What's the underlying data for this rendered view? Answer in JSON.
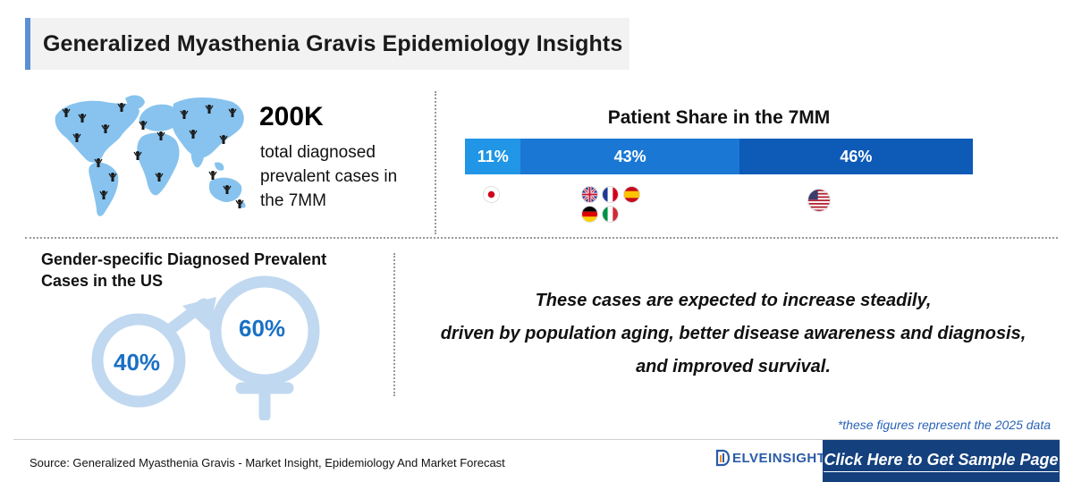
{
  "header": {
    "title": "Generalized Myasthenia Gravis Epidemiology Insights"
  },
  "prevalence": {
    "value": "200K",
    "description": "total diagnosed prevalent cases in the 7MM"
  },
  "patient_share": {
    "title": "Patient Share in the 7MM",
    "segments": [
      {
        "label": "11%",
        "value": 11,
        "color": "#2196e6",
        "flags": [
          "japan-flag-icon"
        ]
      },
      {
        "label": "43%",
        "value": 43,
        "color": "#1a78d4",
        "flags": [
          "uk-flag-icon",
          "france-flag-icon",
          "spain-flag-icon",
          "germany-flag-icon",
          "italy-flag-icon"
        ]
      },
      {
        "label": "46%",
        "value": 46,
        "color": "#0d5ab7",
        "flags": [
          "us-flag-icon"
        ]
      }
    ]
  },
  "gender": {
    "title": "Gender-specific Diagnosed Prevalent Cases in the US",
    "male_pct": "40%",
    "female_pct": "60%",
    "symbol_color": "#c0d8f0"
  },
  "outlook": {
    "line1": "These cases are expected to increase steadily,",
    "line2": "driven by population aging, better disease awareness and diagnosis,",
    "line3": "and improved survival."
  },
  "footnote": "*these figures represent the 2025 data",
  "footer": {
    "source": "Source: Generalized Myasthenia Gravis - Market Insight, Epidemiology And Market Forecast",
    "logo_text": "ELVEINSIGHT",
    "cta_label": "Click Here to Get Sample Page"
  },
  "colors": {
    "accent": "#5b8fd6",
    "cta_bg": "#14407d",
    "pct_text": "#1a70c4",
    "map": "#87c3ee"
  }
}
